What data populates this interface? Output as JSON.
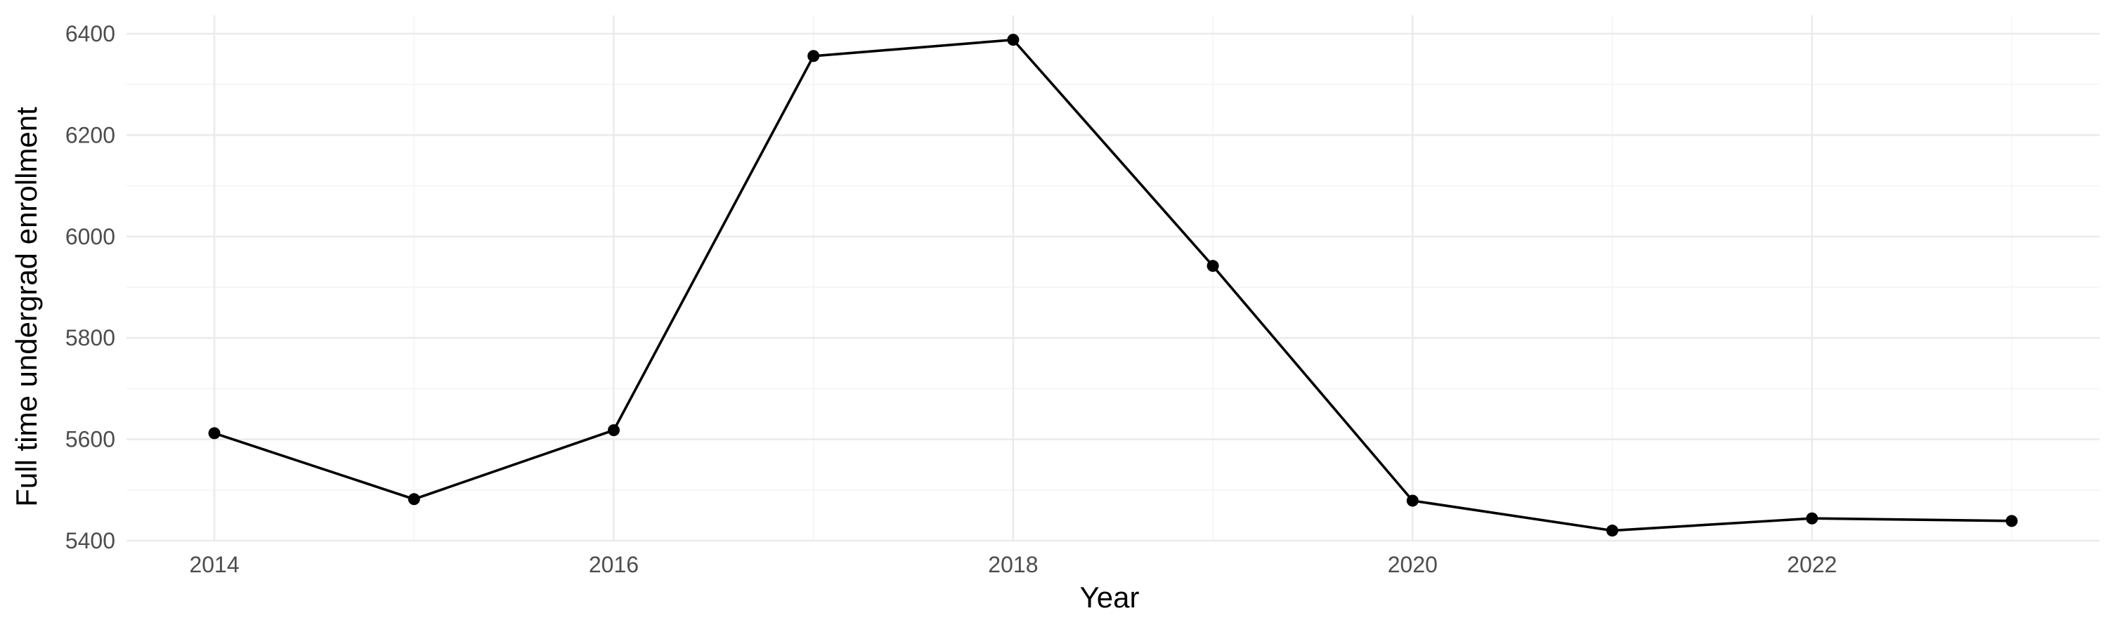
{
  "chart_data": {
    "type": "line",
    "xlabel": "Year",
    "ylabel": "Full time undergrad enrollment",
    "x": [
      2014,
      2015,
      2016,
      2017,
      2018,
      2019,
      2020,
      2021,
      2022,
      2023
    ],
    "series": [
      {
        "values": [
          5612,
          5482,
          5618,
          6356,
          6388,
          5942,
          5479,
          5420,
          5444,
          5439
        ]
      }
    ],
    "xlim": [
      2013.56,
      2023.44
    ],
    "ylim": [
      5400,
      6436
    ],
    "x_ticks": [
      2014,
      2016,
      2018,
      2020,
      2022
    ],
    "y_ticks": [
      5400,
      5600,
      5800,
      6000,
      6200,
      6400
    ],
    "grid": true,
    "legend": "none",
    "colors": {
      "line": "#000000",
      "grid": "#ebebeb",
      "tick_text": "#4d4d4d"
    }
  }
}
